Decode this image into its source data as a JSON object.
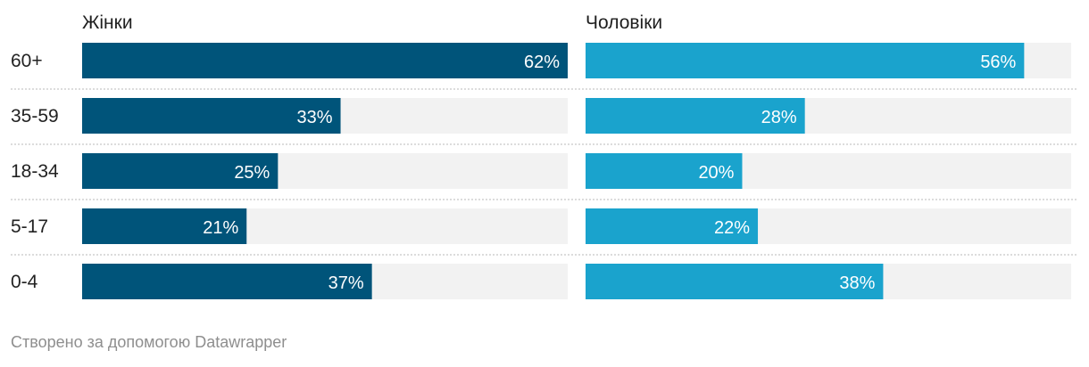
{
  "chart_data": {
    "type": "bar",
    "orientation": "horizontal",
    "categories": [
      "60+",
      "35-59",
      "18-34",
      "5-17",
      "0-4"
    ],
    "series": [
      {
        "name": "Жінки",
        "values": [
          62,
          33,
          25,
          21,
          37
        ],
        "color": "#00547a"
      },
      {
        "name": "Чоловіки",
        "values": [
          56,
          28,
          20,
          22,
          38
        ],
        "color": "#1aa3cd"
      }
    ],
    "value_suffix": "%",
    "xlim": [
      0,
      62
    ],
    "background_bar_color": "#f2f2f2",
    "grid": false
  },
  "footer": {
    "credit": "Створено за допомогою Datawrapper"
  }
}
